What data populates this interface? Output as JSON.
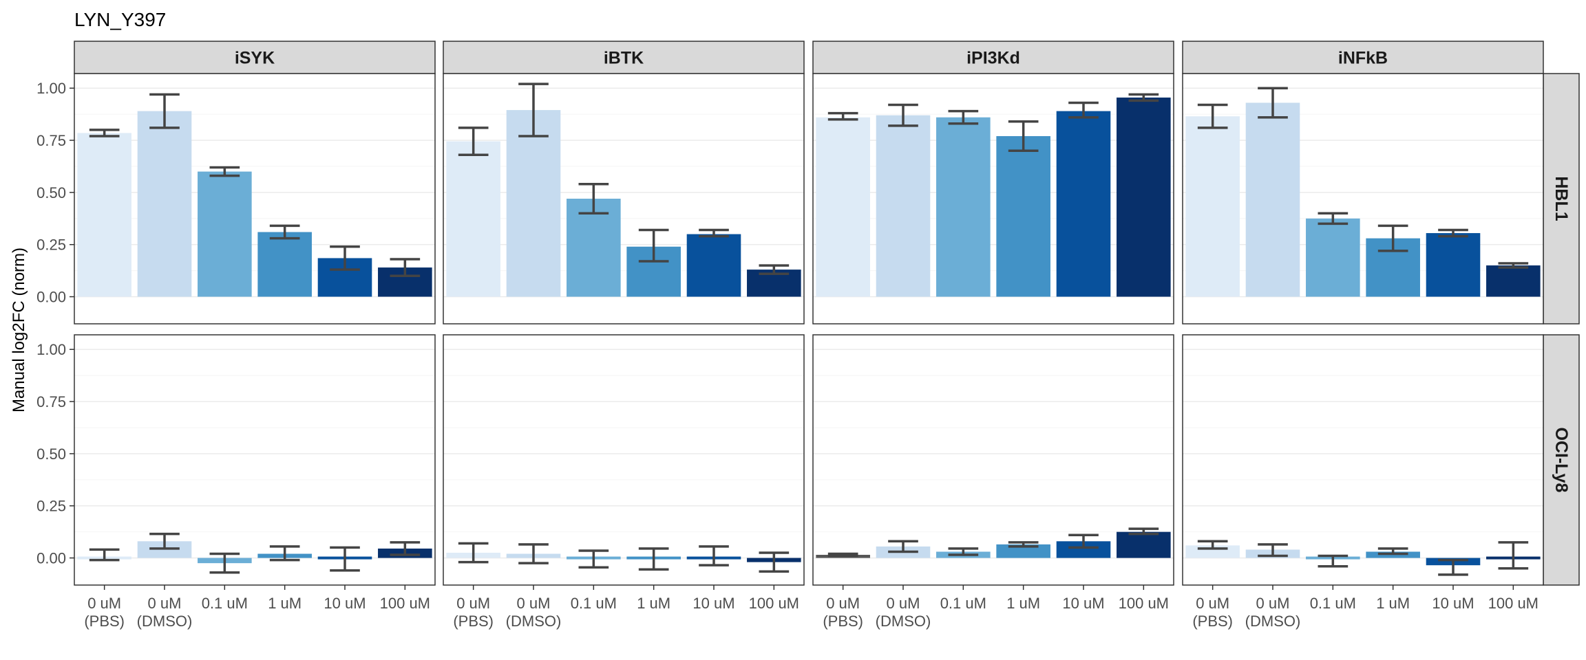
{
  "title": "LYN_Y397",
  "colors": {
    "bar_fills": [
      "#deebf7",
      "#c6dbef",
      "#6baed6",
      "#4292c6",
      "#08519c",
      "#08306b"
    ],
    "zero_bar_fill": "#555555",
    "errorbar": "#444444",
    "strip_fill": "#d9d9d9",
    "grid_major": "#ebebeb",
    "grid_minor": "#f4f4f4",
    "panel_border": "#333333"
  },
  "chart_data": {
    "type": "bar",
    "title": "LYN_Y397",
    "xlabel": "",
    "ylabel": "Manual log2FC (norm)",
    "ylim": [
      -0.13,
      1.07
    ],
    "yticks": [
      0.0,
      0.25,
      0.5,
      0.75,
      1.0
    ],
    "ytick_labels": [
      "0.00",
      "0.25",
      "0.50",
      "0.75",
      "1.00"
    ],
    "grid": true,
    "legend": "none",
    "categories": [
      [
        "0 uM",
        "(PBS)"
      ],
      [
        "0 uM",
        "(DMSO)"
      ],
      [
        "0.1 uM"
      ],
      [
        "1 uM"
      ],
      [
        "10 uM"
      ],
      [
        "100 uM"
      ]
    ],
    "column_facets": [
      "iSYK",
      "iBTK",
      "iPI3Kd",
      "iNFkB"
    ],
    "row_facets": [
      "HBL1",
      "OCI-Ly8"
    ],
    "panels": [
      {
        "row": "HBL1",
        "col": "iSYK",
        "values": [
          0.785,
          0.89,
          0.6,
          0.31,
          0.185,
          0.14
        ],
        "err_low": [
          0.77,
          0.81,
          0.58,
          0.28,
          0.13,
          0.1
        ],
        "err_high": [
          0.8,
          0.97,
          0.62,
          0.34,
          0.24,
          0.18
        ]
      },
      {
        "row": "HBL1",
        "col": "iBTK",
        "values": [
          0.745,
          0.895,
          0.47,
          0.24,
          0.3,
          0.13
        ],
        "err_low": [
          0.68,
          0.77,
          0.4,
          0.17,
          0.29,
          0.11
        ],
        "err_high": [
          0.81,
          1.02,
          0.54,
          0.32,
          0.32,
          0.15
        ]
      },
      {
        "row": "HBL1",
        "col": "iPI3Kd",
        "values": [
          0.86,
          0.87,
          0.86,
          0.77,
          0.89,
          0.955
        ],
        "err_low": [
          0.85,
          0.82,
          0.83,
          0.7,
          0.86,
          0.94
        ],
        "err_high": [
          0.88,
          0.92,
          0.89,
          0.84,
          0.93,
          0.97
        ]
      },
      {
        "row": "HBL1",
        "col": "iNFkB",
        "values": [
          0.865,
          0.93,
          0.375,
          0.28,
          0.305,
          0.15
        ],
        "err_low": [
          0.81,
          0.86,
          0.35,
          0.22,
          0.29,
          0.14
        ],
        "err_high": [
          0.92,
          1.0,
          0.4,
          0.34,
          0.32,
          0.16
        ]
      },
      {
        "row": "OCI-Ly8",
        "col": "iSYK",
        "values": [
          0.01,
          0.08,
          -0.025,
          0.02,
          -0.005,
          0.045
        ],
        "err_low": [
          -0.01,
          0.045,
          -0.07,
          -0.01,
          -0.06,
          0.015
        ],
        "err_high": [
          0.04,
          0.115,
          0.02,
          0.055,
          0.05,
          0.075
        ]
      },
      {
        "row": "OCI-Ly8",
        "col": "iBTK",
        "values": [
          0.025,
          0.02,
          -0.005,
          -0.005,
          0.01,
          -0.02
        ],
        "err_low": [
          -0.02,
          -0.025,
          -0.045,
          -0.055,
          -0.035,
          -0.065
        ],
        "err_high": [
          0.07,
          0.065,
          0.035,
          0.045,
          0.055,
          0.025
        ]
      },
      {
        "row": "OCI-Ly8",
        "col": "iPI3Kd",
        "values": [
          0.015,
          0.055,
          0.03,
          0.065,
          0.08,
          0.125
        ],
        "err_low": [
          0.01,
          0.03,
          0.015,
          0.055,
          0.05,
          0.115
        ],
        "err_high": [
          0.02,
          0.08,
          0.045,
          0.075,
          0.11,
          0.14
        ]
      },
      {
        "row": "OCI-Ly8",
        "col": "iNFkB",
        "values": [
          0.06,
          0.04,
          -0.01,
          0.03,
          -0.035,
          0.01
        ],
        "err_low": [
          0.045,
          0.01,
          -0.04,
          0.02,
          -0.08,
          -0.05
        ],
        "err_high": [
          0.08,
          0.065,
          0.01,
          0.045,
          -0.01,
          0.075
        ]
      }
    ]
  }
}
